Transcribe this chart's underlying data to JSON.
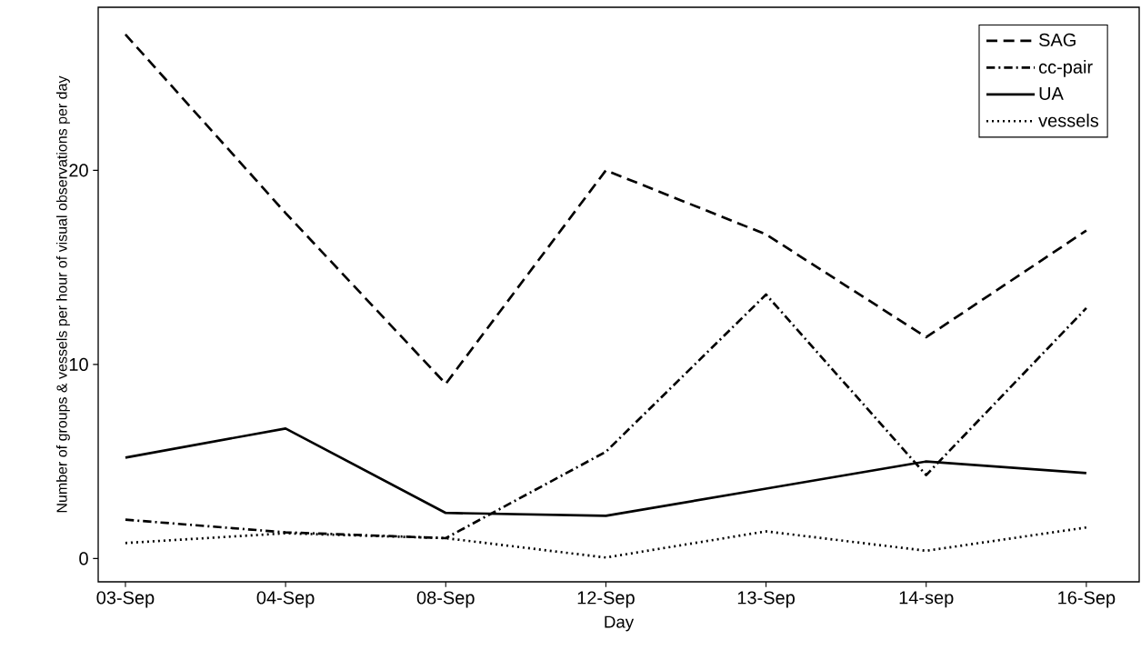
{
  "chart_data": {
    "type": "line",
    "xlabel": "Day",
    "ylabel": "Number of groups & vessels per hour of visual observations per day",
    "categories": [
      "03-Sep",
      "04-Sep",
      "08-Sep",
      "12-Sep",
      "13-Sep",
      "14-sep",
      "16-Sep"
    ],
    "series": [
      {
        "name": "SAG",
        "color": "#000000",
        "line_style": "dashed",
        "values": [
          27.0,
          17.8,
          9.0,
          20.0,
          16.7,
          11.4,
          16.9
        ]
      },
      {
        "name": "cc-pair",
        "color": "#000000",
        "line_style": "dashdot",
        "values": [
          2.0,
          1.35,
          1.05,
          5.5,
          13.6,
          4.3,
          12.9
        ]
      },
      {
        "name": "UA",
        "color": "#000000",
        "line_style": "solid",
        "values": [
          5.2,
          6.7,
          2.35,
          2.2,
          3.6,
          5.0,
          4.4
        ]
      },
      {
        "name": "vessels",
        "color": "#000000",
        "line_style": "dotted",
        "values": [
          0.8,
          1.3,
          1.05,
          0.05,
          1.4,
          0.4,
          1.6
        ]
      }
    ],
    "ylim": [
      -1.2,
      28.4
    ],
    "yticks": [
      0,
      10,
      20
    ],
    "grid": false,
    "legend": "top right",
    "marker": "none"
  }
}
